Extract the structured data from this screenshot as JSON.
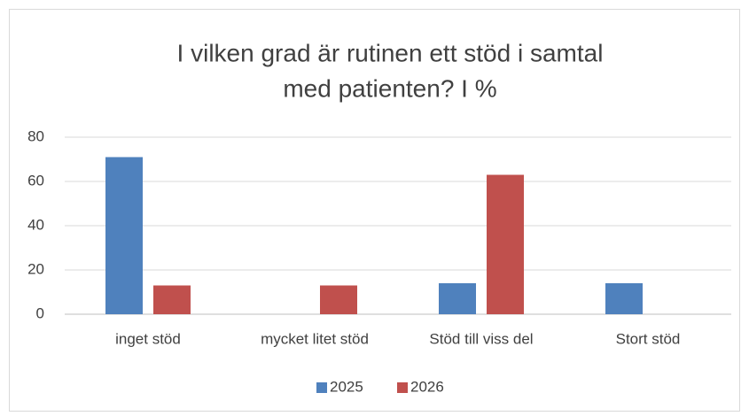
{
  "chart_data": {
    "type": "bar",
    "title": [
      "I vilken grad är rutinen ett stöd i samtal",
      "med patienten?  I %"
    ],
    "categories": [
      "inget stöd",
      "mycket litet stöd",
      "Stöd till viss del",
      "Stort stöd"
    ],
    "series": [
      {
        "name": "2025",
        "color": "#4f81bd",
        "values": [
          71,
          0,
          14,
          14
        ]
      },
      {
        "name": "2026",
        "color": "#c0504d",
        "values": [
          13,
          13,
          63,
          0
        ]
      }
    ],
    "ylim": [
      0,
      80
    ],
    "yticks": [
      0,
      20,
      40,
      60,
      80
    ],
    "grid": true,
    "legend": "bottom"
  }
}
